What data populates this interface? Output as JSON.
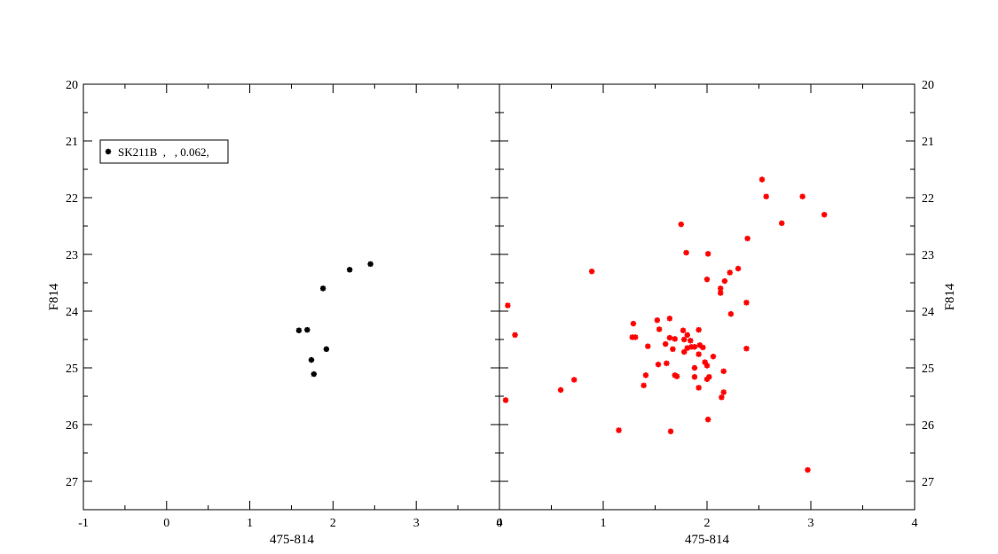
{
  "chart_data": [
    {
      "type": "scatter",
      "panel": "left",
      "xlabel": "475-814",
      "ylabel": "F814",
      "xlim": [
        -1,
        4
      ],
      "ylim": [
        27.5,
        20
      ],
      "y_inverted": true,
      "x_ticks": [
        "-1",
        "0",
        "1",
        "2",
        "3",
        "4"
      ],
      "y_ticks": [
        "20",
        "21",
        "22",
        "23",
        "24",
        "25",
        "26",
        "27"
      ],
      "grid": false,
      "legend_position": "top-left",
      "legend_text": "SK211B  ,   , 0.062,",
      "series": [
        {
          "name": "SK211B  ,   , 0.062,",
          "color": "#000000",
          "marker": "star",
          "points": [
            {
              "x": 2.45,
              "y": 23.17
            },
            {
              "x": 2.2,
              "y": 23.27
            },
            {
              "x": 1.88,
              "y": 23.6
            },
            {
              "x": 1.59,
              "y": 24.34
            },
            {
              "x": 1.69,
              "y": 24.33
            },
            {
              "x": 1.92,
              "y": 24.67
            },
            {
              "x": 1.74,
              "y": 24.86
            },
            {
              "x": 1.77,
              "y": 25.11
            }
          ]
        }
      ]
    },
    {
      "type": "scatter",
      "panel": "right",
      "xlabel": "475-814",
      "ylabel": "F814",
      "xlim": [
        0,
        4
      ],
      "ylim": [
        27.5,
        20
      ],
      "y_inverted": true,
      "x_ticks": [
        "0",
        "1",
        "2",
        "3",
        "4"
      ],
      "y_ticks": [
        "20",
        "21",
        "22",
        "23",
        "24",
        "25",
        "26",
        "27"
      ],
      "grid": false,
      "series": [
        {
          "color": "#ff0000",
          "marker": "star",
          "points": [
            {
              "x": 2.53,
              "y": 21.68
            },
            {
              "x": 2.57,
              "y": 21.98
            },
            {
              "x": 2.92,
              "y": 21.98
            },
            {
              "x": 3.13,
              "y": 22.3
            },
            {
              "x": 2.72,
              "y": 22.45
            },
            {
              "x": 1.75,
              "y": 22.47
            },
            {
              "x": 2.39,
              "y": 22.72
            },
            {
              "x": 1.8,
              "y": 22.97
            },
            {
              "x": 2.01,
              "y": 22.99
            },
            {
              "x": 2.3,
              "y": 23.25
            },
            {
              "x": 2.22,
              "y": 23.32
            },
            {
              "x": 0.89,
              "y": 23.3
            },
            {
              "x": 2.0,
              "y": 23.44
            },
            {
              "x": 2.17,
              "y": 23.47
            },
            {
              "x": 2.13,
              "y": 23.6
            },
            {
              "x": 2.13,
              "y": 23.68
            },
            {
              "x": 2.38,
              "y": 23.85
            },
            {
              "x": 0.08,
              "y": 23.9
            },
            {
              "x": 2.23,
              "y": 24.05
            },
            {
              "x": 1.64,
              "y": 24.13
            },
            {
              "x": 1.52,
              "y": 24.16
            },
            {
              "x": 1.29,
              "y": 24.22
            },
            {
              "x": 1.54,
              "y": 24.32
            },
            {
              "x": 1.92,
              "y": 24.33
            },
            {
              "x": 1.77,
              "y": 24.34
            },
            {
              "x": 1.81,
              "y": 24.42
            },
            {
              "x": 0.15,
              "y": 24.42
            },
            {
              "x": 1.28,
              "y": 24.46
            },
            {
              "x": 1.31,
              "y": 24.46
            },
            {
              "x": 1.64,
              "y": 24.47
            },
            {
              "x": 1.69,
              "y": 24.49
            },
            {
              "x": 1.78,
              "y": 24.5
            },
            {
              "x": 1.84,
              "y": 24.52
            },
            {
              "x": 1.6,
              "y": 24.58
            },
            {
              "x": 1.93,
              "y": 24.6
            },
            {
              "x": 1.43,
              "y": 24.62
            },
            {
              "x": 1.85,
              "y": 24.63
            },
            {
              "x": 1.81,
              "y": 24.65
            },
            {
              "x": 1.88,
              "y": 24.63
            },
            {
              "x": 1.96,
              "y": 24.64
            },
            {
              "x": 1.67,
              "y": 24.67
            },
            {
              "x": 2.38,
              "y": 24.66
            },
            {
              "x": 1.78,
              "y": 24.72
            },
            {
              "x": 1.92,
              "y": 24.76
            },
            {
              "x": 2.06,
              "y": 24.8
            },
            {
              "x": 1.98,
              "y": 24.9
            },
            {
              "x": 1.61,
              "y": 24.92
            },
            {
              "x": 1.53,
              "y": 24.94
            },
            {
              "x": 2.0,
              "y": 24.96
            },
            {
              "x": 1.88,
              "y": 25.0
            },
            {
              "x": 2.16,
              "y": 25.06
            },
            {
              "x": 1.41,
              "y": 25.13
            },
            {
              "x": 1.69,
              "y": 25.13
            },
            {
              "x": 1.71,
              "y": 25.15
            },
            {
              "x": 1.88,
              "y": 25.16
            },
            {
              "x": 2.02,
              "y": 25.16
            },
            {
              "x": 2.0,
              "y": 25.2
            },
            {
              "x": 0.72,
              "y": 25.21
            },
            {
              "x": 1.39,
              "y": 25.31
            },
            {
              "x": 1.92,
              "y": 25.35
            },
            {
              "x": 0.59,
              "y": 25.39
            },
            {
              "x": 2.16,
              "y": 25.43
            },
            {
              "x": 2.14,
              "y": 25.52
            },
            {
              "x": 0.06,
              "y": 25.57
            },
            {
              "x": 2.01,
              "y": 25.91
            },
            {
              "x": 1.15,
              "y": 26.1
            },
            {
              "x": 1.65,
              "y": 26.12
            },
            {
              "x": 2.97,
              "y": 26.8
            }
          ]
        }
      ]
    }
  ]
}
